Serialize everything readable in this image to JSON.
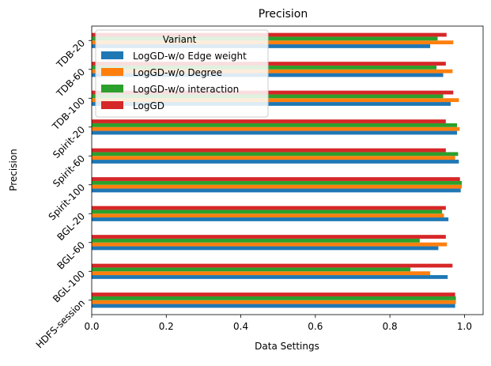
{
  "chart_data": {
    "type": "bar",
    "orientation": "horizontal",
    "title": "Precision",
    "xlabel": "Data Settings",
    "ylabel": "Precision",
    "xlim": [
      0,
      1.05
    ],
    "xticks": [
      "0.0",
      "0.2",
      "0.4",
      "0.6",
      "0.8",
      "1.0"
    ],
    "categories": [
      "HDFS-session",
      "BGL-100",
      "BGL-60",
      "BGL-20",
      "Spirit-100",
      "Spirit-60",
      "Spirit-20",
      "TDB-100",
      "TDB-60",
      "TDB-20"
    ],
    "legend": {
      "title": "Variant",
      "placement": "upper-left"
    },
    "series": [
      {
        "name": "LogGD-w/o Edge weight",
        "color": "#1f77b4",
        "values": [
          0.975,
          0.955,
          0.93,
          0.957,
          0.99,
          0.985,
          0.98,
          0.963,
          0.943,
          0.908
        ]
      },
      {
        "name": "LogGD-w/o Degree",
        "color": "#ff7f0e",
        "values": [
          0.977,
          0.908,
          0.953,
          0.945,
          0.993,
          0.975,
          0.987,
          0.985,
          0.968,
          0.97
        ]
      },
      {
        "name": "LogGD-w/o interaction",
        "color": "#2ca02c",
        "values": [
          0.977,
          0.855,
          0.88,
          0.94,
          0.993,
          0.983,
          0.98,
          0.943,
          0.925,
          0.928
        ]
      },
      {
        "name": "LogGD",
        "color": "#d62728",
        "values": [
          0.975,
          0.968,
          0.95,
          0.95,
          0.988,
          0.95,
          0.95,
          0.97,
          0.95,
          0.952
        ]
      }
    ]
  }
}
